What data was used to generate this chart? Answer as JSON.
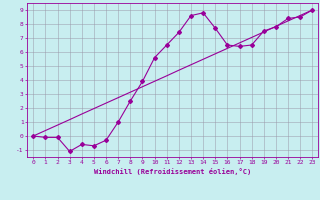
{
  "xlabel": "Windchill (Refroidissement éolien,°C)",
  "xlim": [
    -0.5,
    23.5
  ],
  "ylim": [
    -1.5,
    9.5
  ],
  "xticks": [
    0,
    1,
    2,
    3,
    4,
    5,
    6,
    7,
    8,
    9,
    10,
    11,
    12,
    13,
    14,
    15,
    16,
    17,
    18,
    19,
    20,
    21,
    22,
    23
  ],
  "yticks": [
    -1,
    0,
    1,
    2,
    3,
    4,
    5,
    6,
    7,
    8,
    9
  ],
  "bg_color": "#c8eef0",
  "line_color": "#990099",
  "grid_color": "#9999aa",
  "line1_x": [
    0,
    1,
    2,
    3,
    4,
    5,
    6,
    7,
    8,
    9,
    10,
    11,
    12,
    13,
    14,
    15,
    16,
    17,
    18,
    19,
    20,
    21,
    22,
    23
  ],
  "line1_y": [
    0,
    -0.1,
    -0.1,
    -1.1,
    -0.6,
    -0.7,
    -0.3,
    1.0,
    2.5,
    3.9,
    5.6,
    6.5,
    7.4,
    8.6,
    8.8,
    7.7,
    6.5,
    6.4,
    6.5,
    7.5,
    7.8,
    8.4,
    8.5,
    9.0
  ],
  "line2_x": [
    0,
    1,
    2,
    3,
    4,
    5,
    6,
    7,
    8,
    9,
    10,
    11,
    12,
    13,
    14,
    15,
    16,
    17,
    18,
    19,
    20,
    21,
    22,
    23
  ],
  "line2_y": [
    0,
    0.39,
    0.78,
    1.17,
    1.57,
    1.96,
    2.35,
    2.74,
    3.13,
    3.52,
    3.91,
    4.3,
    4.7,
    5.09,
    5.48,
    5.87,
    6.26,
    6.65,
    7.04,
    7.43,
    7.83,
    8.22,
    8.61,
    9.0
  ]
}
